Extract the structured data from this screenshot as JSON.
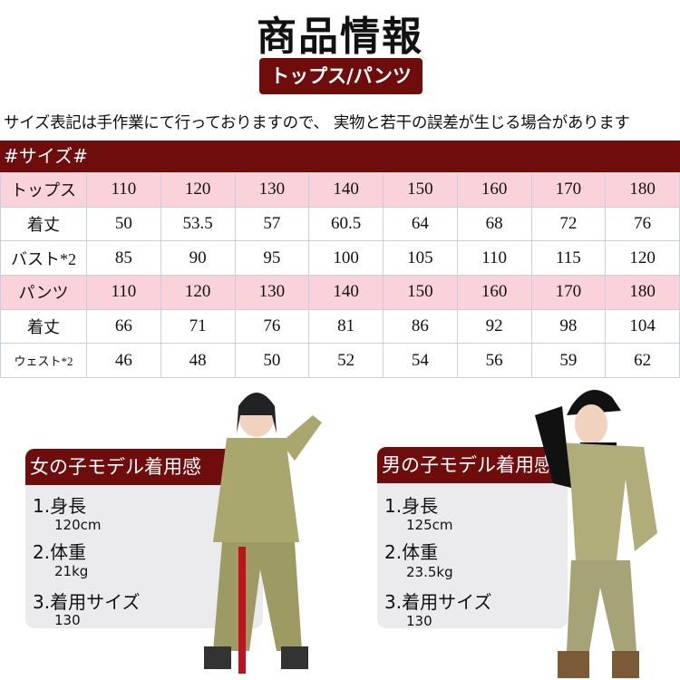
{
  "header": {
    "title": "商品情報",
    "subtitle": "トップス/パンツ"
  },
  "note": "サイズ表記は手作業にて行っておりますので、 実物と若干の誤差が生じる場合があります",
  "size_table": {
    "heading": "#サイズ#",
    "rows": [
      {
        "label": "トップス",
        "values": [
          "110",
          "120",
          "130",
          "140",
          "150",
          "160",
          "170",
          "180"
        ]
      },
      {
        "label": "着丈",
        "values": [
          "50",
          "53.5",
          "57",
          "60.5",
          "64",
          "68",
          "72",
          "76"
        ]
      },
      {
        "label": "バスト*2",
        "values": [
          "85",
          "90",
          "95",
          "100",
          "105",
          "110",
          "115",
          "120"
        ]
      },
      {
        "label": "パンツ",
        "values": [
          "110",
          "120",
          "130",
          "140",
          "150",
          "160",
          "170",
          "180"
        ]
      },
      {
        "label": "着丈",
        "values": [
          "66",
          "71",
          "76",
          "81",
          "86",
          "92",
          "98",
          "104"
        ]
      },
      {
        "label": "ウェスト*2",
        "values": [
          "46",
          "48",
          "50",
          "52",
          "54",
          "56",
          "59",
          "62"
        ]
      }
    ]
  },
  "models": [
    {
      "title": "女の子モデル着用感",
      "height_label": "1.身長",
      "height": "120cm",
      "weight_label": "2.体重",
      "weight": "21kg",
      "size_label": "3.着用サイズ",
      "size": "130"
    },
    {
      "title": "男の子モデル着用感",
      "height_label": "1.身長",
      "height": "125cm",
      "weight_label": "2.体重",
      "weight": "23.5kg",
      "size_label": "3.着用サイズ",
      "size": "130"
    }
  ],
  "colors": {
    "brand": "#6f0d0d",
    "highlight_row": "#f9d2da",
    "card_bg": "#ebebee",
    "khaki": "#a9a66e"
  }
}
